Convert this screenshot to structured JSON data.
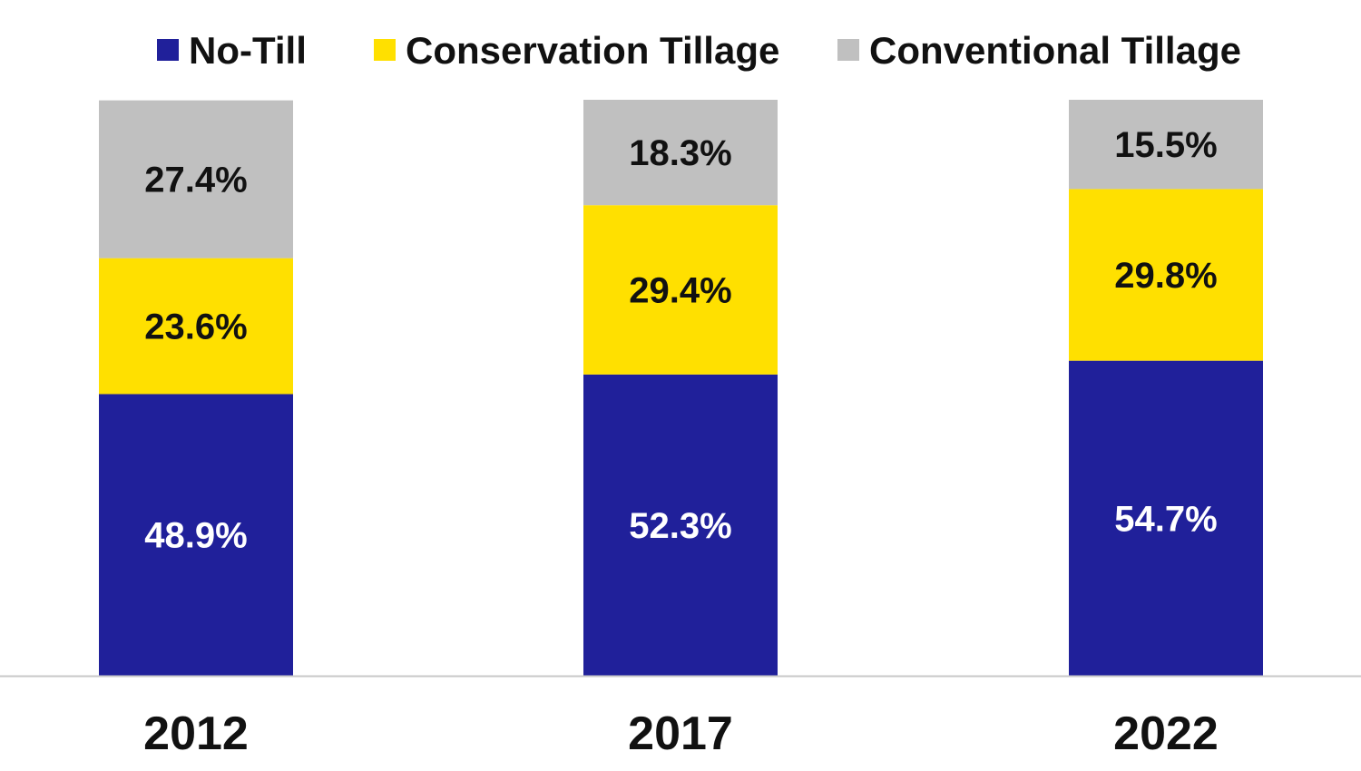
{
  "chart_data": {
    "type": "bar",
    "stacked": true,
    "categories": [
      "2012",
      "2017",
      "2022"
    ],
    "series": [
      {
        "name": "No-Till",
        "values": [
          48.9,
          52.3,
          54.7
        ],
        "labels": [
          "48.9%",
          "52.3%",
          "54.7%"
        ],
        "color": "#20209a",
        "label_color": "#ffffff"
      },
      {
        "name": "Conservation Tillage",
        "values": [
          23.6,
          29.4,
          29.8
        ],
        "labels": [
          "23.6%",
          "29.4%",
          "29.8%"
        ],
        "color": "#ffe000",
        "label_color": "#111111"
      },
      {
        "name": "Conventional Tillage",
        "values": [
          27.4,
          18.3,
          15.5
        ],
        "labels": [
          "27.4%",
          "18.3%",
          "15.5%"
        ],
        "color": "#c0c0c0",
        "label_color": "#111111"
      }
    ],
    "title": "",
    "xlabel": "",
    "ylabel": "",
    "ylim": [
      0,
      100
    ],
    "grid": false,
    "legend": "top",
    "axis_color": "#c8c8c8"
  }
}
